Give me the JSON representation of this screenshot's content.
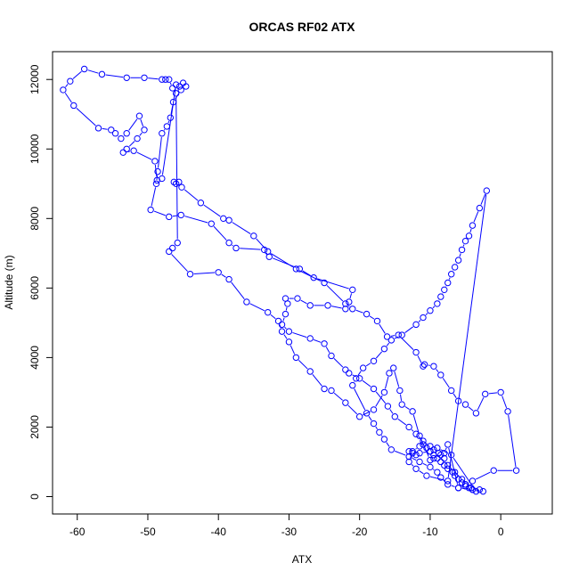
{
  "chart_data": {
    "type": "line",
    "title": "ORCAS RF02 ATX",
    "xlabel": "ATX",
    "ylabel": "Altitude (m)",
    "xlim": [
      -63.5,
      7.3
    ],
    "ylim": [
      -500,
      12800
    ],
    "xticks": [
      -60,
      -50,
      -40,
      -30,
      -20,
      -10,
      0
    ],
    "yticks": [
      0,
      2000,
      4000,
      6000,
      8000,
      10000,
      12000
    ],
    "xtick_labels": [
      "-60",
      "-50",
      "-40",
      "-30",
      "-20",
      "-10",
      "0"
    ],
    "ytick_labels": [
      "0",
      "2000",
      "4000",
      "6000",
      "8000",
      "10000",
      "12000"
    ],
    "grid": false,
    "series": [
      {
        "color": "#0000ff",
        "marker": "open-circle",
        "x": [
          -46.3,
          -46.0,
          -45.6,
          -45.2,
          -42.5,
          -39.3,
          -38.5,
          -35.0,
          -33.0,
          -29.0,
          -25.0,
          -22.0,
          -21.0,
          -19.0,
          -17.5,
          -16.1,
          -14.5,
          -12.0,
          -11.0,
          -10.8,
          -9.5,
          -8.5,
          -7.0,
          -6.0,
          -5.0,
          -3.5,
          -2.2,
          0.0,
          1.0,
          2.2,
          -1.0,
          -4.0,
          -5.0,
          -6.0,
          -7.5,
          -8.0,
          -9.5,
          -10.0,
          -11.5,
          -12.5,
          -14.0,
          -14.3,
          -15.2,
          -15.8,
          -16.5,
          -18.0,
          -20.0,
          -22.0,
          -24.0,
          -25.0,
          -27.0,
          -29.0,
          -30.0,
          -31.0,
          -31.5,
          -33.0,
          -36.0,
          -38.5,
          -40.0,
          -44.0,
          -47.0,
          -46.5,
          -45.8,
          -46.0,
          -46.5,
          -47.0,
          -47.5,
          -48.0,
          -50.5,
          -53.0,
          -56.5,
          -59.0,
          -61.0,
          -62.0,
          -60.5,
          -57.0,
          -55.2,
          -54.6,
          -53.8,
          -53.0,
          -51.2,
          -50.5,
          -51.5,
          -53.0,
          -53.5,
          -52.0,
          -49.0,
          -48.7,
          -48.0,
          -46.0,
          -45.5,
          -45.0,
          -44.6,
          -45.3,
          -46.4,
          -46.8,
          -47.3,
          -48.0,
          -48.6,
          -48.8,
          -49.6,
          -47.0,
          -45.3,
          -41.0,
          -38.5,
          -37.5,
          -33.5,
          -32.8,
          -28.5,
          -26.5,
          -21.0,
          -21.5,
          -22.0,
          -24.5,
          -27.0,
          -28.8,
          -30.5,
          -30.2,
          -30.5,
          -31.0,
          -30.0,
          -27.0,
          -25.0,
          -24.0,
          -22.0,
          -21.5,
          -20.0,
          -18.0,
          -16.0,
          -15.0,
          -13.0,
          -12.0,
          -11.0,
          -10.0,
          -9.5,
          -8.8,
          -8.5,
          -8.0,
          -7.5,
          -6.5,
          -5.5,
          -5.0,
          -4.2,
          -3.0,
          -2.5,
          -4.0,
          -6.0,
          -7.5,
          -8.5,
          -9.0,
          -10.0,
          -11.5,
          -13.0,
          -15.5,
          -16.5,
          -17.2,
          -18.0,
          -19.0,
          -21.0,
          -20.5,
          -19.5,
          -18.0,
          -16.5,
          -15.5,
          -14.0,
          -12.0,
          -11.0,
          -10.0,
          -9.0,
          -8.5,
          -8.0,
          -7.5,
          -7.0,
          -6.5,
          -6.0,
          -5.5,
          -5.0,
          -4.5,
          -4.0,
          -3.0,
          -2.0,
          -7.5,
          -10.5,
          -12.0,
          -13.0,
          -12.5,
          -11.5,
          -11.0,
          -10.5,
          -10.0,
          -9.5,
          -9.0,
          -8.5,
          -8.0,
          -7.5,
          -6.8,
          -6.5,
          -6.0,
          -5.5,
          -5.0,
          -4.5,
          -4.0,
          -3.5,
          -7.0,
          -9.0,
          -10.0,
          -11.5,
          -12.0,
          -12.5,
          -13.0
        ],
        "y": [
          9050,
          9000,
          9050,
          8900,
          8450,
          8000,
          7950,
          7500,
          7050,
          6550,
          6150,
          5550,
          5400,
          5250,
          5050,
          4600,
          4650,
          4150,
          3750,
          3800,
          3750,
          3500,
          3050,
          2750,
          2650,
          2400,
          2950,
          3000,
          2450,
          750,
          750,
          450,
          350,
          250,
          1500,
          1250,
          1100,
          1050,
          1750,
          2450,
          2650,
          3050,
          3700,
          3550,
          3000,
          2500,
          2300,
          2700,
          3050,
          3100,
          3600,
          4000,
          4450,
          4750,
          5050,
          5300,
          5600,
          6250,
          6450,
          6400,
          7050,
          7150,
          7300,
          11600,
          11750,
          12000,
          12000,
          12000,
          12050,
          12050,
          12150,
          12300,
          11950,
          11700,
          11250,
          10600,
          10550,
          10450,
          10300,
          10450,
          10950,
          10550,
          10300,
          10000,
          9900,
          9950,
          9650,
          9100,
          9150,
          11850,
          11800,
          11900,
          11800,
          11700,
          11350,
          10900,
          10650,
          10450,
          9350,
          9000,
          8250,
          8050,
          8100,
          7850,
          7300,
          7150,
          7100,
          6900,
          6550,
          6300,
          5950,
          5600,
          5400,
          5500,
          5500,
          5700,
          5700,
          5550,
          5250,
          4950,
          4750,
          4550,
          4400,
          4050,
          3650,
          3550,
          3400,
          3100,
          2600,
          2300,
          2000,
          1800,
          1600,
          1450,
          1350,
          1250,
          1200,
          1100,
          900,
          700,
          500,
          350,
          250,
          200,
          150,
          200,
          250,
          350,
          550,
          700,
          850,
          1000,
          1150,
          1350,
          1650,
          1850,
          2100,
          2400,
          3200,
          3400,
          3700,
          3900,
          4250,
          4500,
          4650,
          4950,
          5150,
          5350,
          5550,
          5750,
          5950,
          6150,
          6400,
          6600,
          6800,
          7100,
          7350,
          7500,
          7800,
          8300,
          8800,
          450,
          600,
          800,
          1000,
          1300,
          1450,
          1500,
          1400,
          1300,
          1200,
          1100,
          1000,
          900,
          800,
          700,
          600,
          500,
          400,
          300,
          250,
          200,
          150,
          1200,
          1400,
          1300,
          1250,
          1200,
          1250,
          1300
        ]
      }
    ]
  }
}
